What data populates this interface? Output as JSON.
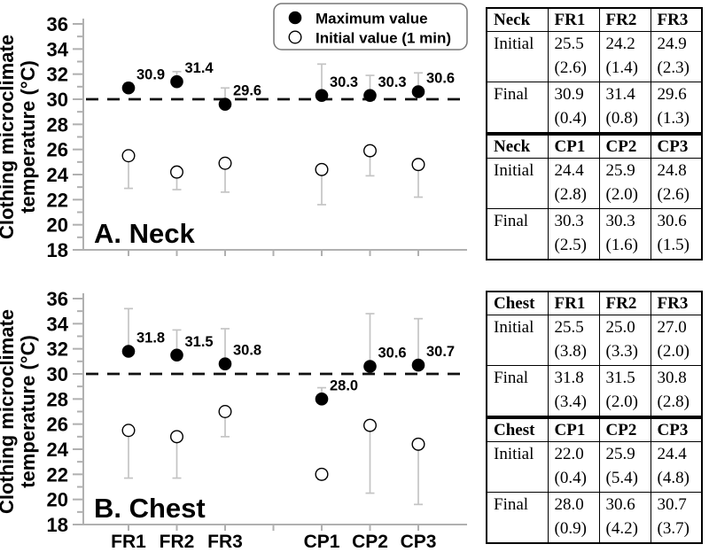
{
  "figure": {
    "y_axis_title_line1": "Clothing microclimate",
    "y_axis_title_line2": "temperature (°C)",
    "legend": [
      {
        "marker": "filled",
        "label": "Maximum value"
      },
      {
        "marker": "open",
        "label": "Initial value (1 min)"
      }
    ]
  },
  "chart_data": [
    {
      "type": "scatter",
      "panel_label": "A. Neck",
      "ylabel": "Clothing microclimate temperature (°C)",
      "ylim": [
        18,
        36
      ],
      "ytick_major_step": 2,
      "ytick_minor_step": 1,
      "reference_line_y": 30,
      "grid": false,
      "legend_position": "top-right",
      "categories": [
        "FR1",
        "FR2",
        "FR3",
        "CP1",
        "CP2",
        "CP3"
      ],
      "x_slots": [
        0,
        1,
        2,
        4,
        5,
        6
      ],
      "n_slots": 7,
      "show_x_labels": false,
      "show_legend": true,
      "series": [
        {
          "name": "Maximum value",
          "marker": "filled",
          "error_direction": "up",
          "values": [
            30.9,
            31.4,
            29.6,
            30.3,
            30.3,
            30.6
          ],
          "sd": [
            0.4,
            0.8,
            1.3,
            2.5,
            1.6,
            1.5
          ],
          "point_labels": [
            "30.9",
            "31.4",
            "29.6",
            "30.3",
            "30.3",
            "30.6"
          ]
        },
        {
          "name": "Initial value (1 min)",
          "marker": "open",
          "error_direction": "down",
          "values": [
            25.5,
            24.2,
            24.9,
            24.4,
            25.9,
            24.8
          ],
          "sd": [
            2.6,
            1.4,
            2.3,
            2.8,
            2.0,
            2.6
          ],
          "point_labels": []
        }
      ]
    },
    {
      "type": "scatter",
      "panel_label": "B. Chest",
      "ylabel": "Clothing microclimate temperature (°C)",
      "ylim": [
        18,
        36
      ],
      "ytick_major_step": 2,
      "ytick_minor_step": 1,
      "reference_line_y": 30,
      "grid": false,
      "legend_position": "none",
      "categories": [
        "FR1",
        "FR2",
        "FR3",
        "CP1",
        "CP2",
        "CP3"
      ],
      "x_slots": [
        0,
        1,
        2,
        4,
        5,
        6
      ],
      "n_slots": 7,
      "show_x_labels": true,
      "show_legend": false,
      "series": [
        {
          "name": "Maximum value",
          "marker": "filled",
          "error_direction": "up",
          "values": [
            31.8,
            31.5,
            30.8,
            28.0,
            30.6,
            30.7
          ],
          "sd": [
            3.4,
            2.0,
            2.8,
            0.9,
            4.2,
            3.7
          ],
          "point_labels": [
            "31.8",
            "31.5",
            "30.8",
            "28.0",
            "30.6",
            "30.7"
          ]
        },
        {
          "name": "Initial value (1 min)",
          "marker": "open",
          "error_direction": "down",
          "values": [
            25.5,
            25.0,
            27.0,
            22.0,
            25.9,
            24.4
          ],
          "sd": [
            3.8,
            3.3,
            2.0,
            0.4,
            5.4,
            4.8
          ],
          "point_labels": []
        }
      ]
    }
  ],
  "tables": [
    {
      "id": "table-neck",
      "sections": [
        {
          "header": [
            "Neck",
            "FR1",
            "FR2",
            "FR3"
          ],
          "rows": [
            {
              "label": "Initial",
              "cells": [
                {
                  "value": "25.5",
                  "sd": "(2.6)"
                },
                {
                  "value": "24.2",
                  "sd": "(1.4)"
                },
                {
                  "value": "24.9",
                  "sd": "(2.3)"
                }
              ]
            },
            {
              "label": "Final",
              "cells": [
                {
                  "value": "30.9",
                  "sd": "(0.4)"
                },
                {
                  "value": "31.4",
                  "sd": "(0.8)"
                },
                {
                  "value": "29.6",
                  "sd": "(1.3)"
                }
              ]
            }
          ]
        },
        {
          "header": [
            "Neck",
            "CP1",
            "CP2",
            "CP3"
          ],
          "rows": [
            {
              "label": "Initial",
              "cells": [
                {
                  "value": "24.4",
                  "sd": "(2.8)"
                },
                {
                  "value": "25.9",
                  "sd": "(2.0)"
                },
                {
                  "value": "24.8",
                  "sd": "(2.6)"
                }
              ]
            },
            {
              "label": "Final",
              "cells": [
                {
                  "value": "30.3",
                  "sd": "(2.5)"
                },
                {
                  "value": "30.3",
                  "sd": "(1.6)"
                },
                {
                  "value": "30.6",
                  "sd": "(1.5)"
                }
              ]
            }
          ]
        }
      ]
    },
    {
      "id": "table-chest",
      "sections": [
        {
          "header": [
            "Chest",
            "FR1",
            "FR2",
            "FR3"
          ],
          "rows": [
            {
              "label": "Initial",
              "cells": [
                {
                  "value": "25.5",
                  "sd": "(3.8)"
                },
                {
                  "value": "25.0",
                  "sd": "(3.3)"
                },
                {
                  "value": "27.0",
                  "sd": "(2.0)"
                }
              ]
            },
            {
              "label": "Final",
              "cells": [
                {
                  "value": "31.8",
                  "sd": "(3.4)"
                },
                {
                  "value": "31.5",
                  "sd": "(2.0)"
                },
                {
                  "value": "30.8",
                  "sd": "(2.8)"
                }
              ]
            }
          ]
        },
        {
          "header": [
            "Chest",
            "CP1",
            "CP2",
            "CP3"
          ],
          "rows": [
            {
              "label": "Initial",
              "cells": [
                {
                  "value": "22.0",
                  "sd": "(0.4)"
                },
                {
                  "value": "25.9",
                  "sd": "(5.4)"
                },
                {
                  "value": "24.4",
                  "sd": "(4.8)"
                }
              ]
            },
            {
              "label": "Final",
              "cells": [
                {
                  "value": "28.0",
                  "sd": "(0.9)"
                },
                {
                  "value": "30.6",
                  "sd": "(4.2)"
                },
                {
                  "value": "30.7",
                  "sd": "(3.7)"
                }
              ]
            }
          ]
        }
      ]
    }
  ],
  "colors": {
    "marker_fill": "#000000",
    "marker_open_fill": "#ffffff",
    "error_bar": "#c4c4c4",
    "axis": "#b0b0b0",
    "reference_line": "#111111",
    "text": "#000000",
    "legend_border": "#777777"
  }
}
